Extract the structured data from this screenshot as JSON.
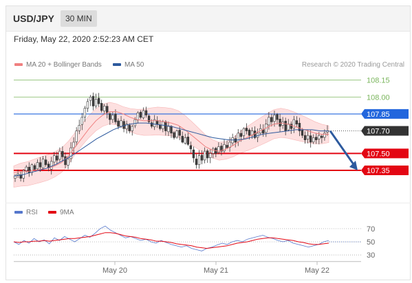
{
  "header": {
    "pair": "USD/JPY",
    "timeframe": "30 MIN"
  },
  "timestamp": "Friday, May 22, 2020 2:52:23 AM CET",
  "legend": {
    "ma20_bb": "MA 20 + Bollinger Bands",
    "ma50": "MA 50",
    "credit": "Research © 2020 Trading Central"
  },
  "rsi_legend": {
    "rsi": "RSI",
    "ma9": "9MA"
  },
  "colors": {
    "ma20": "#f08080",
    "ma50": "#2d5a9e",
    "band_fill": "#fde0e0",
    "resistance_green": "#7ab55c",
    "pivot_blue": "#2266dd",
    "support_red": "#e30613",
    "current_price": "#333333",
    "arrow": "#2d5a9e"
  },
  "chart_data": [
    {
      "type": "candlestick",
      "title": "USD/JPY",
      "x_tick_labels": [
        "May 20",
        "May 21",
        "May 22"
      ],
      "ylim": [
        107.2,
        108.25
      ],
      "levels": [
        {
          "label": "108.15",
          "value": 108.15,
          "style": "green"
        },
        {
          "label": "108.00",
          "value": 108.0,
          "style": "green"
        },
        {
          "label": "107.85",
          "value": 107.85,
          "style": "blue"
        },
        {
          "label": "107.70",
          "value": 107.7,
          "style": "current"
        },
        {
          "label": "107.50",
          "value": 107.5,
          "style": "red"
        },
        {
          "label": "107.35",
          "value": 107.35,
          "style": "red"
        }
      ],
      "closes": [
        107.3,
        107.32,
        107.28,
        107.35,
        107.38,
        107.33,
        107.4,
        107.36,
        107.42,
        107.38,
        107.45,
        107.4,
        107.37,
        107.43,
        107.48,
        107.44,
        107.52,
        107.47,
        107.4,
        107.45,
        107.55,
        107.6,
        107.7,
        107.75,
        107.82,
        107.9,
        107.96,
        108.0,
        107.92,
        107.98,
        107.94,
        107.88,
        107.92,
        107.86,
        107.8,
        107.84,
        107.78,
        107.74,
        107.79,
        107.72,
        107.76,
        107.7,
        107.74,
        107.8,
        107.86,
        107.82,
        107.88,
        107.84,
        107.78,
        107.74,
        107.8,
        107.76,
        107.72,
        107.78,
        107.7,
        107.74,
        107.68,
        107.64,
        107.7,
        107.66,
        107.6,
        107.64,
        107.58,
        107.54,
        107.46,
        107.4,
        107.48,
        107.44,
        107.52,
        107.46,
        107.5,
        107.54,
        107.5,
        107.56,
        107.52,
        107.58,
        107.55,
        107.6,
        107.64,
        107.6,
        107.68,
        107.65,
        107.72,
        107.7,
        107.66,
        107.7,
        107.64,
        107.68,
        107.72,
        107.68,
        107.76,
        107.82,
        107.78,
        107.84,
        107.8,
        107.74,
        107.78,
        107.7,
        107.76,
        107.72,
        107.8,
        107.76,
        107.7,
        107.66,
        107.62,
        107.66,
        107.6,
        107.64,
        107.62,
        107.66,
        107.64,
        107.68,
        107.7
      ],
      "ma_20_approx": [
        107.33,
        107.34,
        107.34,
        107.35,
        107.36,
        107.37,
        107.39,
        107.42,
        107.48,
        107.56,
        107.64,
        107.72,
        107.79,
        107.84,
        107.87,
        107.87,
        107.85,
        107.82,
        107.8,
        107.79,
        107.79,
        107.79,
        107.78,
        107.77,
        107.75,
        107.71,
        107.66,
        107.61,
        107.56,
        107.53,
        107.52,
        107.54,
        107.57,
        107.61,
        107.64,
        107.67,
        107.7,
        107.73,
        107.76,
        107.77,
        107.76,
        107.74,
        107.72,
        107.7,
        107.68,
        107.67,
        107.67
      ],
      "ma_50_approx": [
        107.3,
        107.31,
        107.33,
        107.35,
        107.37,
        107.4,
        107.44,
        107.48,
        107.53,
        107.58,
        107.63,
        107.67,
        107.71,
        107.74,
        107.76,
        107.77,
        107.77,
        107.76,
        107.75,
        107.74,
        107.72,
        107.7,
        107.68,
        107.66,
        107.64,
        107.63,
        107.62,
        107.62,
        107.63,
        107.65,
        107.67,
        107.68,
        107.69,
        107.7,
        107.71,
        107.71,
        107.71,
        107.7,
        107.7
      ]
    },
    {
      "type": "line",
      "title": "RSI",
      "y_tick_labels": [
        "70",
        "50",
        "30"
      ],
      "ylim": [
        20,
        80
      ],
      "series": [
        {
          "name": "RSI",
          "values": [
            50,
            46,
            52,
            48,
            55,
            50,
            53,
            47,
            56,
            52,
            58,
            54,
            50,
            55,
            60,
            57,
            63,
            70,
            74,
            68,
            64,
            60,
            56,
            58,
            55,
            52,
            54,
            50,
            48,
            52,
            49,
            46,
            44,
            42,
            44,
            40,
            38,
            36,
            40,
            42,
            45,
            48,
            46,
            50,
            52,
            50,
            54,
            56,
            58,
            60,
            57,
            55,
            52,
            50,
            52,
            48,
            46,
            44,
            42,
            44,
            46,
            50,
            52
          ]
        },
        {
          "name": "9MA",
          "values": [
            50,
            49,
            50,
            50,
            51,
            51,
            52,
            51,
            52,
            53,
            54,
            55,
            55,
            56,
            57,
            58,
            60,
            62,
            64,
            64,
            63,
            61,
            59,
            58,
            57,
            55,
            54,
            53,
            51,
            51,
            50,
            49,
            47,
            46,
            45,
            44,
            42,
            41,
            40,
            41,
            42,
            43,
            44,
            46,
            48,
            49,
            50,
            52,
            54,
            55,
            56,
            56,
            55,
            54,
            53,
            52,
            50,
            49,
            47,
            46,
            46,
            47,
            48
          ]
        }
      ]
    }
  ]
}
